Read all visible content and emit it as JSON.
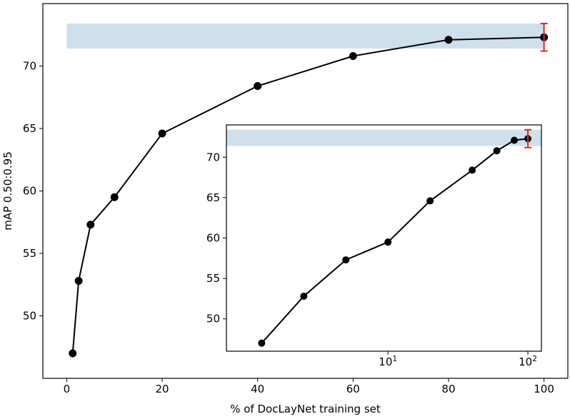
{
  "chart_data": [
    {
      "type": "line",
      "role": "main",
      "xlabel": "% of DocLayNet training set",
      "ylabel": "mAP 0.50:0.95",
      "xlim": [
        -5,
        105
      ],
      "ylim": [
        45,
        75
      ],
      "xticks": [
        0,
        20,
        40,
        60,
        80,
        100
      ],
      "xtick_labels": [
        "0",
        "20",
        "40",
        "60",
        "80",
        "100"
      ],
      "yticks": [
        50,
        55,
        60,
        65,
        70
      ],
      "ytick_labels": [
        "50",
        "55",
        "60",
        "65",
        "70"
      ],
      "band": {
        "y_low": 71.4,
        "y_high": 73.4,
        "x_start": 0,
        "x_end": 100,
        "color": "#cfe0ed"
      },
      "series": [
        {
          "x": [
            1.25,
            2.5,
            5,
            10,
            20,
            40,
            60,
            80,
            100
          ],
          "y": [
            47.0,
            52.8,
            57.3,
            59.5,
            64.6,
            68.4,
            70.8,
            72.1,
            72.3
          ],
          "color": "#000000"
        }
      ],
      "error": {
        "x": 100,
        "y": 72.3,
        "low": 71.2,
        "high": 73.4,
        "color": "#e8231f"
      },
      "grid": false
    },
    {
      "type": "line",
      "role": "inset",
      "scale_x": "log",
      "xlim": [
        0.7,
        125
      ],
      "ylim": [
        46,
        74
      ],
      "xticks": [
        10,
        100
      ],
      "xtick_labels": [
        {
          "base": "10",
          "exp": "1"
        },
        {
          "base": "10",
          "exp": "2"
        }
      ],
      "yticks": [
        50,
        55,
        60,
        65,
        70
      ],
      "ytick_labels": [
        "50",
        "55",
        "60",
        "65",
        "70"
      ],
      "band": {
        "y_low": 71.4,
        "y_high": 73.4,
        "color": "#cfe0ed"
      },
      "series": [
        {
          "x": [
            1.25,
            2.5,
            5,
            10,
            20,
            40,
            60,
            80,
            100
          ],
          "y": [
            47.0,
            52.8,
            57.3,
            59.5,
            64.6,
            68.4,
            70.8,
            72.1,
            72.3
          ],
          "color": "#000000"
        }
      ],
      "error": {
        "x": 100,
        "y": 72.3,
        "low": 71.2,
        "high": 73.4,
        "color": "#e8231f"
      },
      "grid": false
    }
  ]
}
